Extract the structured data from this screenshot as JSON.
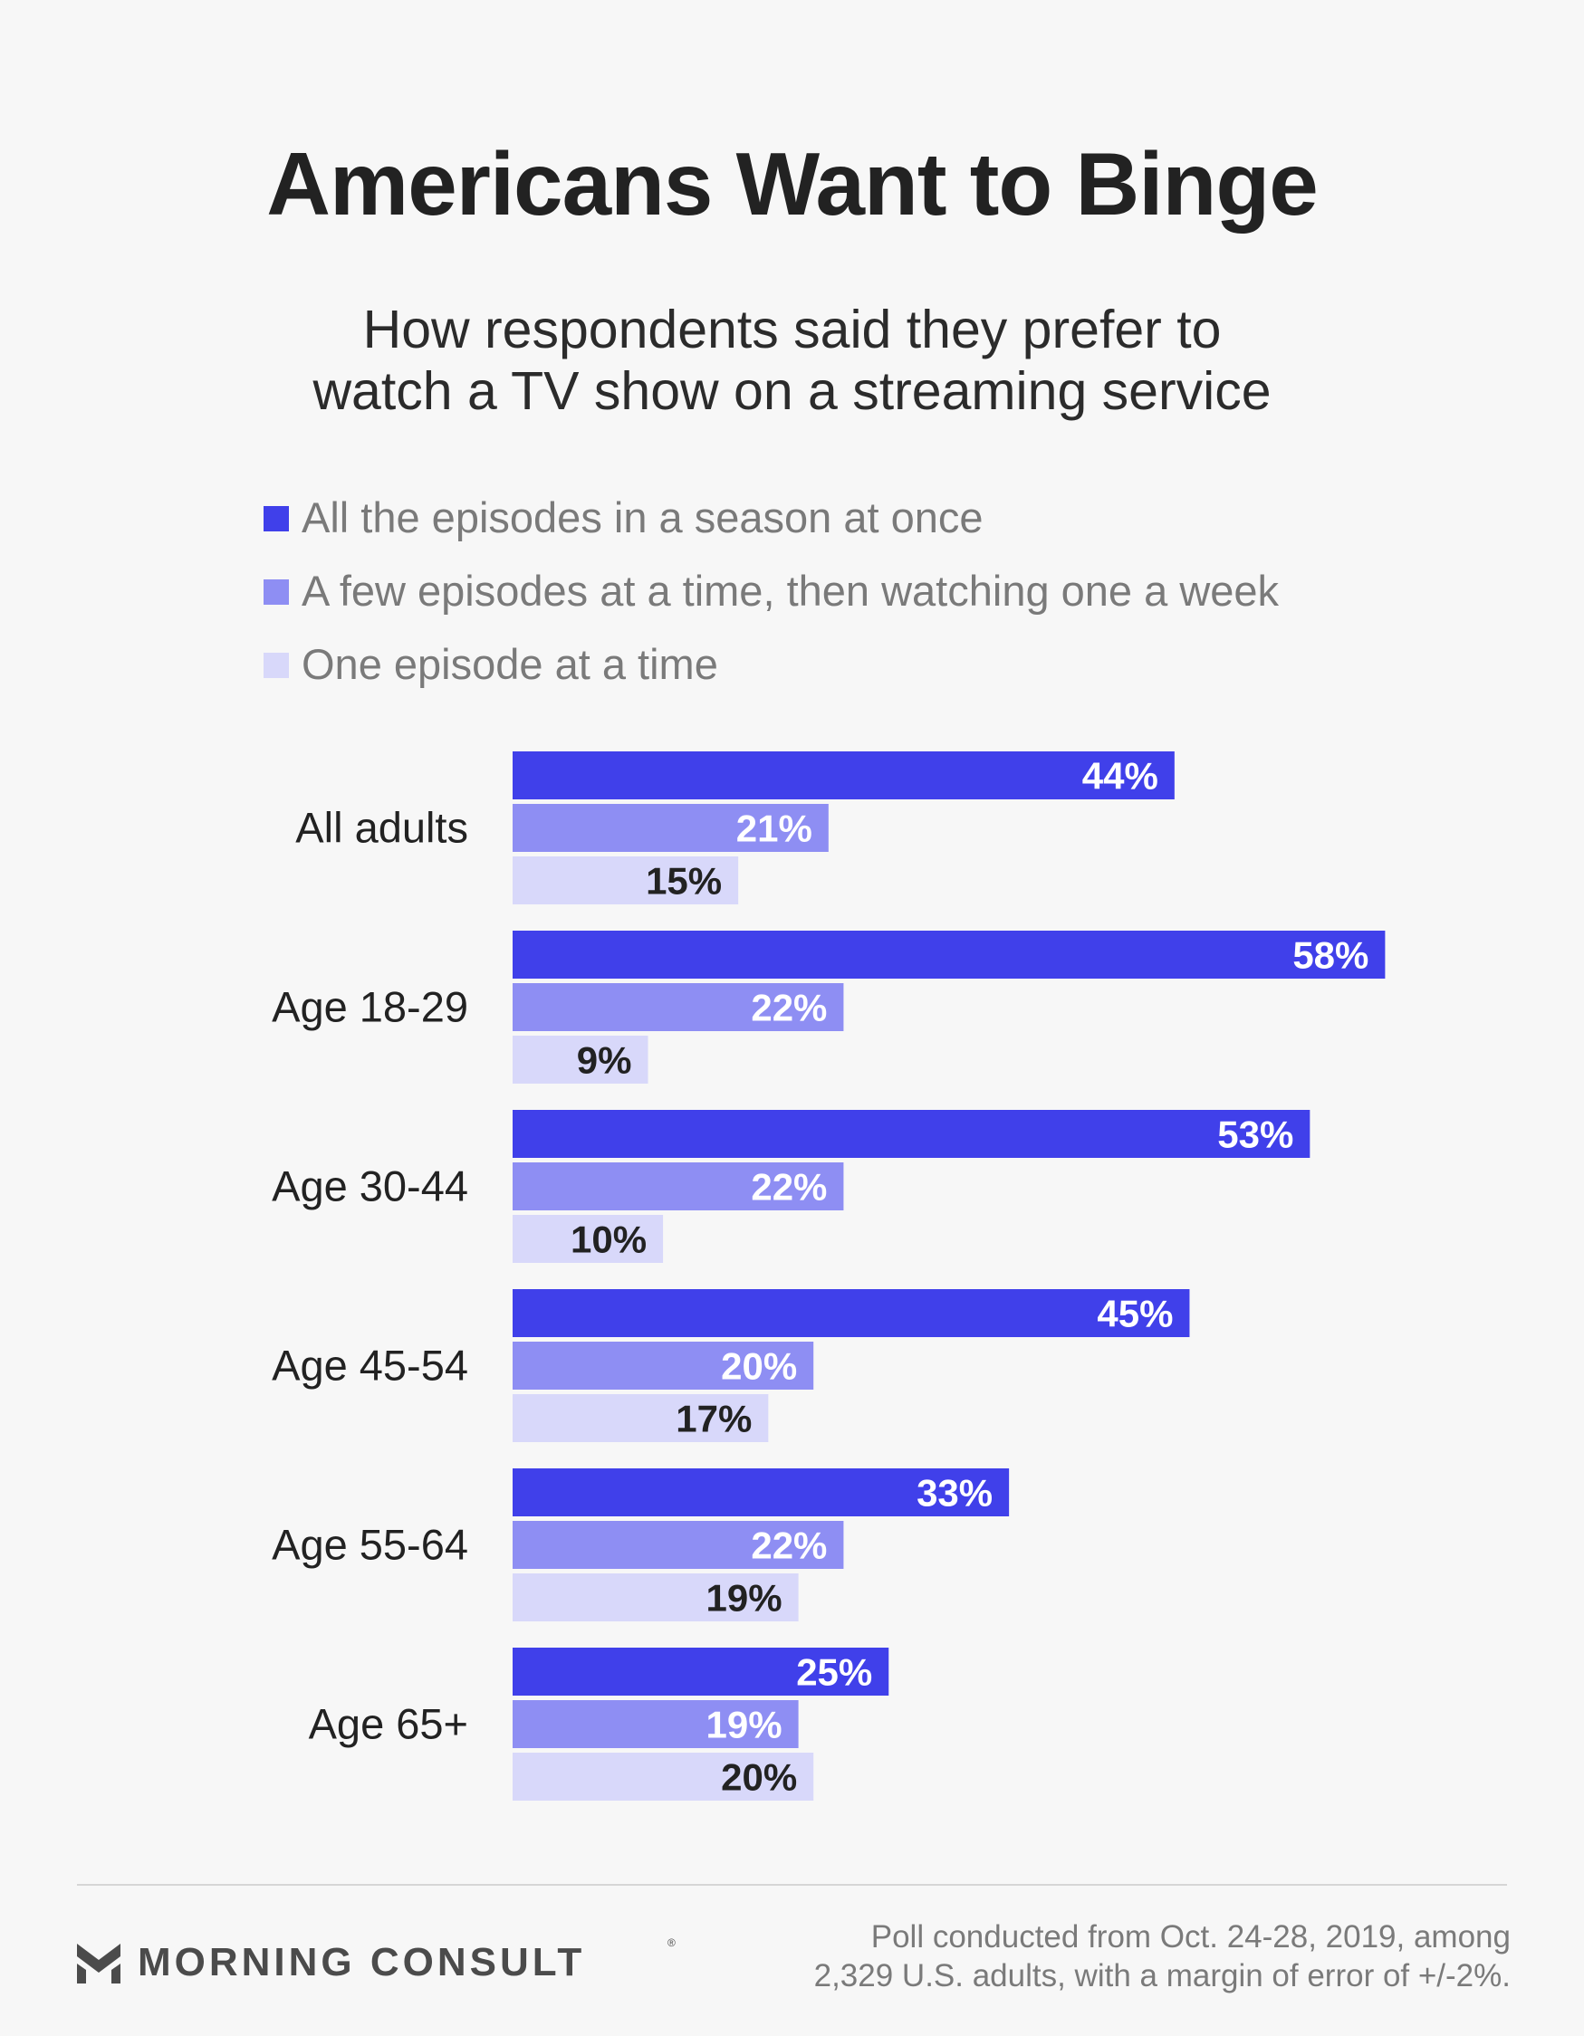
{
  "colors": {
    "series": [
      "#4040ea",
      "#8e8ef3",
      "#d8d8fa"
    ],
    "value_label_light": "#ffffff",
    "value_label_dark": "#222222",
    "category_label": "#222222"
  },
  "chart_data": {
    "type": "bar",
    "orientation": "horizontal",
    "title": "Americans Want to Binge",
    "subtitle_lines": [
      "How respondents said they prefer to",
      "watch a TV show on a streaming service"
    ],
    "categories": [
      "All adults",
      "Age 18-29",
      "Age 30-44",
      "Age 45-54",
      "Age 55-64",
      "Age 65+"
    ],
    "series": [
      {
        "name": "All the episodes in a season at once",
        "values": [
          44,
          58,
          53,
          45,
          33,
          25
        ],
        "labels": [
          "44%",
          "58%",
          "53%",
          "45%",
          "33%",
          "25%"
        ]
      },
      {
        "name": "A few episodes at a time, then watching one a week",
        "values": [
          21,
          22,
          22,
          20,
          22,
          19
        ],
        "labels": [
          "21%",
          "22%",
          "22%",
          "20%",
          "22%",
          "19%"
        ]
      },
      {
        "name": "One episode at a time",
        "values": [
          15,
          9,
          10,
          17,
          19,
          20
        ],
        "labels": [
          "15%",
          "9%",
          "10%",
          "17%",
          "19%",
          "20%"
        ]
      }
    ],
    "unit": "%",
    "legend_position": "top-left",
    "grid": false,
    "xlim": [
      0,
      58
    ]
  },
  "footer": {
    "brand": "MORNING CONSULT",
    "brand_mark": "morning-consult-logo-icon",
    "note_lines": [
      "Poll conducted from Oct. 24-28, 2019, among",
      "2,329 U.S. adults, with a margin of error of +/-2%."
    ]
  }
}
